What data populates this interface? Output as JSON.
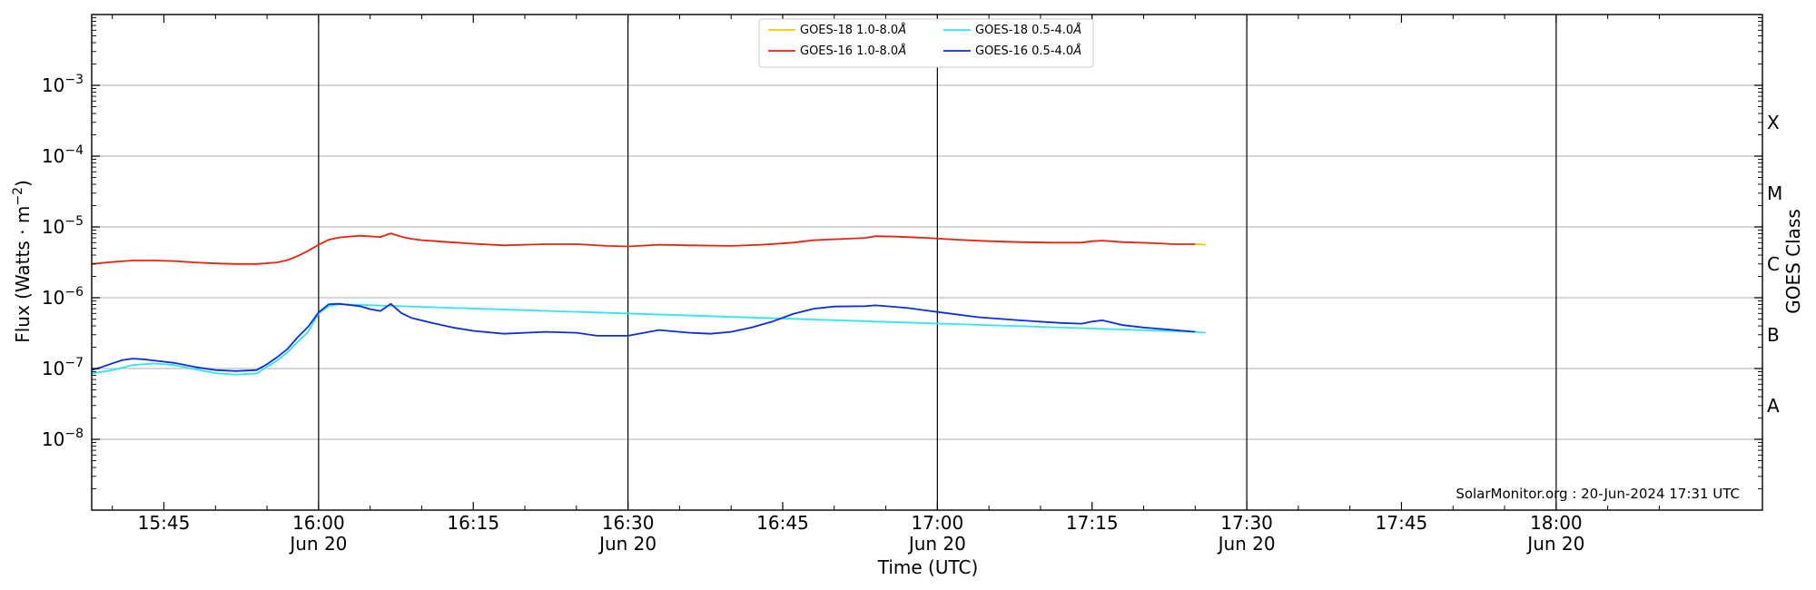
{
  "chart_data": {
    "type": "line",
    "xlabel": "Time (UTC)",
    "ylabel_main": "Flux (Watts · m",
    "ylabel_sup": "−2",
    "ylabel_close": ")",
    "ylabel_right": "GOES Class",
    "credit": "SolarMonitor.org : 20-Jun-2024 17:31 UTC",
    "log_scale": true,
    "ylim": [
      1e-09,
      0.01
    ],
    "xlim": [
      "15:38",
      "18:20"
    ],
    "grid": "horizontal at decades, vertical lines at half-hours",
    "legend_placement": "top-center",
    "x_ticks": [
      {
        "time": "15:45",
        "line1": "15:45",
        "line2": ""
      },
      {
        "time": "16:00",
        "line1": "16:00",
        "line2": "Jun 20"
      },
      {
        "time": "16:15",
        "line1": "16:15",
        "line2": ""
      },
      {
        "time": "16:30",
        "line1": "16:30",
        "line2": "Jun 20"
      },
      {
        "time": "16:45",
        "line1": "16:45",
        "line2": ""
      },
      {
        "time": "17:00",
        "line1": "17:00",
        "line2": "Jun 20"
      },
      {
        "time": "17:15",
        "line1": "17:15",
        "line2": ""
      },
      {
        "time": "17:30",
        "line1": "17:30",
        "line2": "Jun 20"
      },
      {
        "time": "17:45",
        "line1": "17:45",
        "line2": ""
      },
      {
        "time": "18:00",
        "line1": "18:00",
        "line2": "Jun 20"
      }
    ],
    "vertical_lines": [
      "16:00",
      "16:30",
      "17:00",
      "17:30",
      "18:00"
    ],
    "y_ticks": [
      {
        "value": 0.001,
        "base": "10",
        "exp": "−3"
      },
      {
        "value": 0.0001,
        "base": "10",
        "exp": "−4"
      },
      {
        "value": 1e-05,
        "base": "10",
        "exp": "−5"
      },
      {
        "value": 1e-06,
        "base": "10",
        "exp": "−6"
      },
      {
        "value": 1e-07,
        "base": "10",
        "exp": "−7"
      },
      {
        "value": 1e-08,
        "base": "10",
        "exp": "−8"
      }
    ],
    "goes_classes": [
      {
        "label": "X",
        "value": 0.0003
      },
      {
        "label": "M",
        "value": 3e-05
      },
      {
        "label": "C",
        "value": 3e-06
      },
      {
        "label": "B",
        "value": 3e-07
      },
      {
        "label": "A",
        "value": 3e-08
      }
    ],
    "series": [
      {
        "name": "GOES-18 1.0-8.0",
        "unit": "Å",
        "color": "#f5c800",
        "x": [
          "17:25",
          "17:26"
        ],
        "y": [
          5.7e-06,
          5.6e-06
        ]
      },
      {
        "name": "GOES-16 1.0-8.0",
        "unit": "Å",
        "color": "#e8230c",
        "x": [
          "15:38",
          "15:40",
          "15:42",
          "15:44",
          "15:46",
          "15:48",
          "15:50",
          "15:52",
          "15:54",
          "15:56",
          "15:57",
          "15:58",
          "15:59",
          "16:00",
          "16:01",
          "16:02",
          "16:04",
          "16:06",
          "16:07",
          "16:08",
          "16:09",
          "16:10",
          "16:12",
          "16:15",
          "16:18",
          "16:20",
          "16:22",
          "16:25",
          "16:28",
          "16:30",
          "16:33",
          "16:36",
          "16:40",
          "16:43",
          "16:46",
          "16:48",
          "16:51",
          "16:53",
          "16:54",
          "16:56",
          "16:59",
          "17:02",
          "17:05",
          "17:08",
          "17:11",
          "17:14",
          "17:15",
          "17:16",
          "17:18",
          "17:21",
          "17:23",
          "17:25"
        ],
        "y": [
          3e-06,
          3.2e-06,
          3.35e-06,
          3.35e-06,
          3.3e-06,
          3.15e-06,
          3.05e-06,
          3e-06,
          3e-06,
          3.15e-06,
          3.4e-06,
          3.9e-06,
          4.6e-06,
          5.6e-06,
          6.6e-06,
          7.1e-06,
          7.5e-06,
          7.2e-06,
          8.1e-06,
          7.3e-06,
          6.8e-06,
          6.5e-06,
          6.2e-06,
          5.8e-06,
          5.5e-06,
          5.6e-06,
          5.7e-06,
          5.7e-06,
          5.4e-06,
          5.3e-06,
          5.6e-06,
          5.5e-06,
          5.4e-06,
          5.6e-06,
          6e-06,
          6.5e-06,
          6.8e-06,
          7e-06,
          7.4e-06,
          7.3e-06,
          7e-06,
          6.6e-06,
          6.3e-06,
          6.1e-06,
          6e-06,
          6e-06,
          6.3e-06,
          6.4e-06,
          6.1e-06,
          5.9e-06,
          5.7e-06,
          5.7e-06
        ]
      },
      {
        "name": "GOES-18 0.5-4.0",
        "unit": "Å",
        "color": "#2ee6f0",
        "x": [
          "15:38",
          "15:40",
          "15:42",
          "15:44",
          "15:46",
          "15:48",
          "15:50",
          "15:52",
          "15:54",
          "15:55",
          "15:56",
          "15:57",
          "15:58",
          "15:59",
          "16:00",
          "16:01",
          "16:02",
          "17:25",
          "17:26"
        ],
        "y": [
          8.5e-08,
          9.5e-08,
          1.12e-07,
          1.18e-07,
          1.12e-07,
          9.8e-08,
          8.6e-08,
          8.2e-08,
          8.5e-08,
          1.05e-07,
          1.3e-07,
          1.7e-07,
          2.4e-07,
          3.3e-07,
          6e-07,
          7.6e-07,
          8.1e-07,
          3.3e-07,
          3.2e-07
        ]
      },
      {
        "name": "GOES-16 0.5-4.0",
        "unit": "Å",
        "color": "#0a2de8",
        "x": [
          "15:38",
          "15:39",
          "15:40",
          "15:41",
          "15:42",
          "15:43",
          "15:44",
          "15:46",
          "15:48",
          "15:50",
          "15:52",
          "15:54",
          "15:55",
          "15:56",
          "15:57",
          "15:58",
          "15:59",
          "16:00",
          "16:01",
          "16:02",
          "16:04",
          "16:05",
          "16:06",
          "16:07",
          "16:08",
          "16:09",
          "16:11",
          "16:13",
          "16:15",
          "16:18",
          "16:20",
          "16:22",
          "16:25",
          "16:27",
          "16:30",
          "16:33",
          "16:36",
          "16:38",
          "16:40",
          "16:42",
          "16:44",
          "16:46",
          "16:48",
          "16:50",
          "16:53",
          "16:54",
          "16:57",
          "17:00",
          "17:04",
          "17:08",
          "17:12",
          "17:14",
          "17:15",
          "17:16",
          "17:18",
          "17:20",
          "17:23",
          "17:25"
        ],
        "y": [
          9.5e-08,
          1.05e-07,
          1.18e-07,
          1.32e-07,
          1.38e-07,
          1.35e-07,
          1.3e-07,
          1.2e-07,
          1.05e-07,
          9.5e-08,
          9.2e-08,
          9.5e-08,
          1.15e-07,
          1.45e-07,
          1.9e-07,
          2.8e-07,
          3.9e-07,
          6.2e-07,
          8.1e-07,
          8.2e-07,
          7.6e-07,
          6.9e-07,
          6.5e-07,
          8.2e-07,
          6.1e-07,
          5.2e-07,
          4.4e-07,
          3.8e-07,
          3.4e-07,
          3.1e-07,
          3.2e-07,
          3.3e-07,
          3.2e-07,
          2.9e-07,
          2.9e-07,
          3.5e-07,
          3.2e-07,
          3.1e-07,
          3.3e-07,
          3.8e-07,
          4.6e-07,
          5.9e-07,
          7e-07,
          7.5e-07,
          7.6e-07,
          7.8e-07,
          7.2e-07,
          6.3e-07,
          5.3e-07,
          4.8e-07,
          4.4e-07,
          4.3e-07,
          4.6e-07,
          4.8e-07,
          4.1e-07,
          3.8e-07,
          3.5e-07,
          3.3e-07
        ]
      }
    ]
  }
}
